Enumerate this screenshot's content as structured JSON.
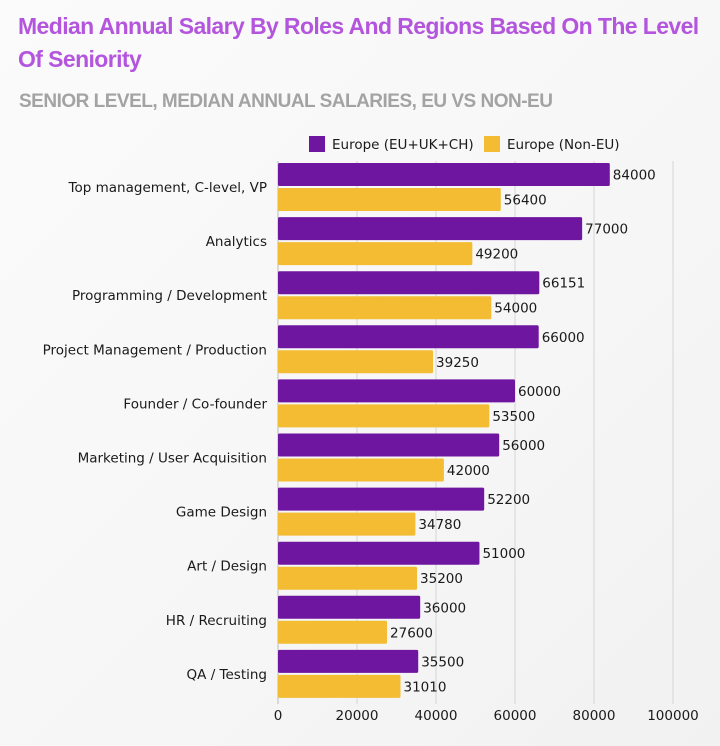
{
  "chart_data": {
    "type": "bar",
    "orientation": "horizontal",
    "title": "Median Annual Salary By Roles And Regions Based On The Level Of Seniority",
    "subtitle": "SENIOR LEVEL, MEDIAN ANNUAL SALARIES, EU VS NON-EU",
    "xlabel": "",
    "ylabel": "",
    "xlim": [
      0,
      100000
    ],
    "xticks": [
      0,
      20000,
      40000,
      60000,
      80000,
      100000
    ],
    "xtick_labels": [
      "0",
      "20000",
      "40000",
      "60000",
      "80000",
      "100000"
    ],
    "grid": true,
    "legend_position": "top-right",
    "categories": [
      "Top management, C-level, VP",
      "Analytics",
      "Programming / Development",
      "Project Management / Production",
      "Founder / Co-founder",
      "Marketing / User Acquisition",
      "Game Design",
      "Art / Design",
      "HR / Recruiting",
      "QA / Testing"
    ],
    "series": [
      {
        "name": "Europe (EU+UK+CH)",
        "color": "#6f16a0",
        "values": [
          84000,
          77000,
          66151,
          66000,
          60000,
          56000,
          52200,
          51000,
          36000,
          35500
        ]
      },
      {
        "name": "Europe (Non-EU)",
        "color": "#f4bc33",
        "values": [
          56400,
          49200,
          54000,
          39250,
          53500,
          42000,
          34780,
          35200,
          27600,
          31010
        ]
      }
    ]
  }
}
